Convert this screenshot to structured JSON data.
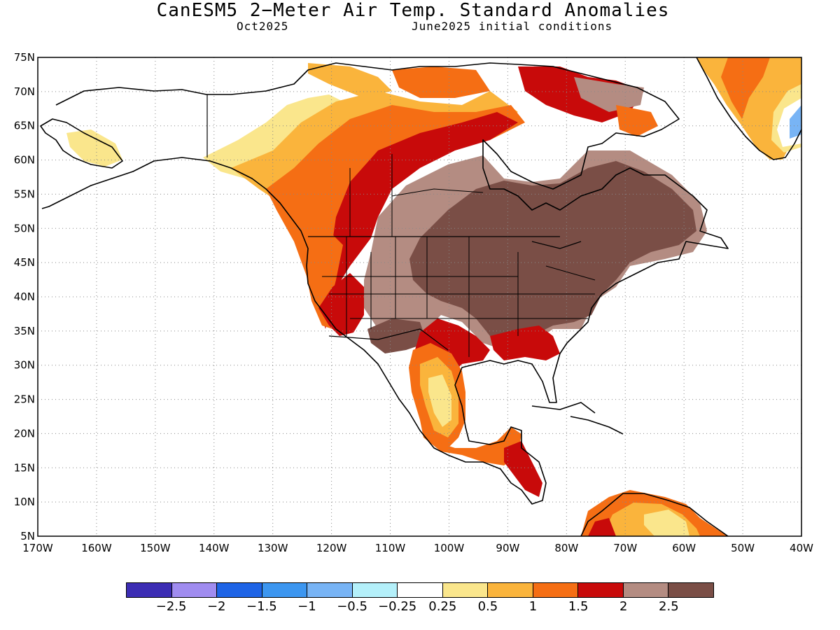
{
  "header": {
    "title": "CanESM5 2−Meter Air Temp. Standard Anomalies",
    "target_month": "Oct2025",
    "init_conditions": "June2025 initial conditions"
  },
  "map": {
    "projection": "equirectangular",
    "lon_range": [
      -170,
      -40
    ],
    "lat_range": [
      5,
      75
    ],
    "grid": "dotted",
    "lat_ticks": [
      "75N",
      "70N",
      "65N",
      "60N",
      "55N",
      "50N",
      "45N",
      "40N",
      "35N",
      "30N",
      "25N",
      "20N",
      "15N",
      "10N",
      "5N"
    ],
    "lon_ticks": [
      "170W",
      "160W",
      "150W",
      "140W",
      "130W",
      "120W",
      "110W",
      "100W",
      "90W",
      "80W",
      "70W",
      "60W",
      "50W",
      "40W"
    ],
    "regions": [
      {
        "name": "Greenland",
        "anomaly": "1 to 2.5"
      },
      {
        "name": "Alaska",
        "anomaly": "near normal to 1"
      },
      {
        "name": "Western Canada",
        "anomaly": "0.5 to 2"
      },
      {
        "name": "Central and Eastern Canada",
        "anomaly": "above 2.5"
      },
      {
        "name": "Central and Eastern United States",
        "anomaly": "above 2.5"
      },
      {
        "name": "Western United States",
        "anomaly": "1.5 to 2.5"
      },
      {
        "name": "Mexico",
        "anomaly": "0.25 to 2"
      },
      {
        "name": "Northern South America",
        "anomaly": "0.5 to 2"
      }
    ]
  },
  "colorbar": {
    "colors": [
      "#3c2db4",
      "#a08cf0",
      "#1e64e6",
      "#3c96f0",
      "#78b4f5",
      "#b4f0fa",
      "#ffffff",
      "#fae68c",
      "#fab43c",
      "#f56e14",
      "#c80a0a",
      "#b48c82",
      "#7a4e46"
    ],
    "labels": [
      "−2.5",
      "−2",
      "−1.5",
      "−1",
      "−0.5",
      "−0.25",
      "0.25",
      "0.5",
      "1",
      "1.5",
      "2",
      "2.5"
    ]
  }
}
